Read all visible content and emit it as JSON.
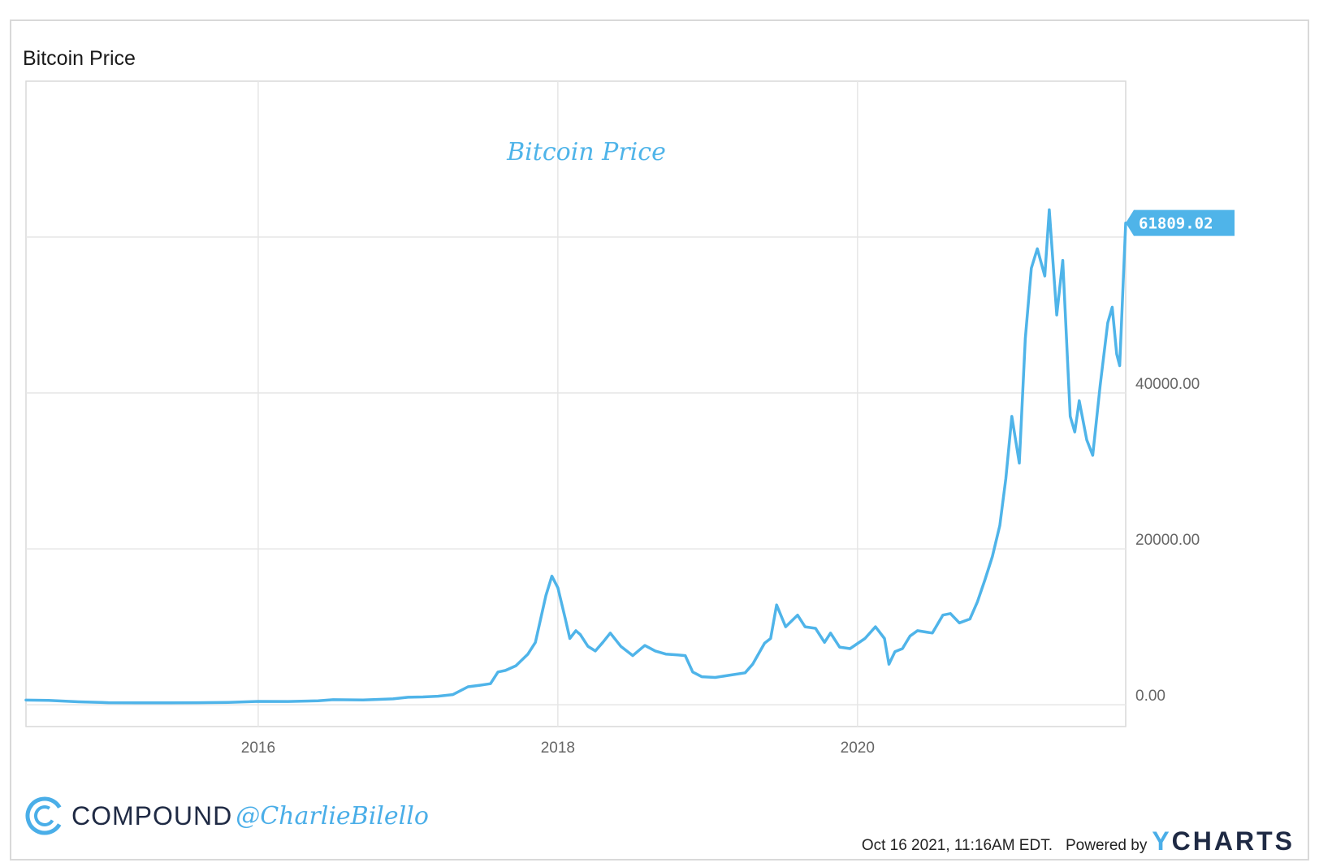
{
  "chart_title": "Bitcoin Price",
  "footer": {
    "brand_name": "COMPOUND",
    "brand_handle": "@CharlieBilello",
    "timestamp": "Oct 16 2021, 11:16AM EDT.",
    "powered_by": "Powered by",
    "ycharts_prefix": "Y",
    "ycharts_rest": "CHARTS"
  },
  "colors": {
    "line": "#4fb4e9",
    "grid": "#e6e6e6",
    "axis_text": "#666666",
    "brand_dark": "#1f2a44"
  },
  "chart_data": {
    "type": "line",
    "title": "Bitcoin Price",
    "watermark": "Bitcoin Price",
    "xlabel": "",
    "ylabel": "",
    "xlim": [
      2014.45,
      2021.79
    ],
    "ylim": [
      -2800,
      80000
    ],
    "x_ticks": [
      {
        "value": 2016,
        "label": "2016"
      },
      {
        "value": 2018,
        "label": "2018"
      },
      {
        "value": 2020,
        "label": "2020"
      }
    ],
    "y_ticks": [
      {
        "value": 0,
        "label": "0.00"
      },
      {
        "value": 20000,
        "label": "20000.00"
      },
      {
        "value": 40000,
        "label": "40000.00"
      },
      {
        "value": 60000,
        "label": ""
      }
    ],
    "last_value_label": "61809.02",
    "grid": true,
    "series": [
      {
        "values": [
          [
            2014.45,
            600
          ],
          [
            2014.6,
            550
          ],
          [
            2014.8,
            380
          ],
          [
            2015.0,
            260
          ],
          [
            2015.2,
            240
          ],
          [
            2015.4,
            240
          ],
          [
            2015.6,
            260
          ],
          [
            2015.8,
            300
          ],
          [
            2016.0,
            430
          ],
          [
            2016.2,
            420
          ],
          [
            2016.4,
            500
          ],
          [
            2016.5,
            650
          ],
          [
            2016.7,
            610
          ],
          [
            2016.9,
            750
          ],
          [
            2017.0,
            960
          ],
          [
            2017.1,
            1000
          ],
          [
            2017.2,
            1100
          ],
          [
            2017.3,
            1300
          ],
          [
            2017.4,
            2300
          ],
          [
            2017.48,
            2500
          ],
          [
            2017.55,
            2700
          ],
          [
            2017.6,
            4200
          ],
          [
            2017.65,
            4400
          ],
          [
            2017.72,
            5000
          ],
          [
            2017.8,
            6500
          ],
          [
            2017.85,
            8000
          ],
          [
            2017.92,
            14000
          ],
          [
            2017.96,
            16500
          ],
          [
            2018.0,
            15000
          ],
          [
            2018.05,
            11000
          ],
          [
            2018.08,
            8500
          ],
          [
            2018.12,
            9500
          ],
          [
            2018.15,
            9000
          ],
          [
            2018.2,
            7500
          ],
          [
            2018.25,
            6900
          ],
          [
            2018.3,
            8000
          ],
          [
            2018.35,
            9200
          ],
          [
            2018.42,
            7500
          ],
          [
            2018.5,
            6300
          ],
          [
            2018.58,
            7600
          ],
          [
            2018.65,
            6900
          ],
          [
            2018.72,
            6500
          ],
          [
            2018.8,
            6400
          ],
          [
            2018.85,
            6300
          ],
          [
            2018.9,
            4200
          ],
          [
            2018.96,
            3600
          ],
          [
            2019.05,
            3500
          ],
          [
            2019.15,
            3800
          ],
          [
            2019.25,
            4100
          ],
          [
            2019.3,
            5200
          ],
          [
            2019.38,
            7900
          ],
          [
            2019.42,
            8500
          ],
          [
            2019.46,
            12800
          ],
          [
            2019.52,
            10000
          ],
          [
            2019.6,
            11500
          ],
          [
            2019.65,
            10000
          ],
          [
            2019.72,
            9800
          ],
          [
            2019.78,
            8000
          ],
          [
            2019.82,
            9200
          ],
          [
            2019.88,
            7400
          ],
          [
            2019.95,
            7200
          ],
          [
            2020.05,
            8500
          ],
          [
            2020.12,
            10000
          ],
          [
            2020.18,
            8500
          ],
          [
            2020.21,
            5200
          ],
          [
            2020.25,
            6800
          ],
          [
            2020.3,
            7200
          ],
          [
            2020.35,
            8800
          ],
          [
            2020.4,
            9500
          ],
          [
            2020.5,
            9200
          ],
          [
            2020.57,
            11500
          ],
          [
            2020.62,
            11700
          ],
          [
            2020.68,
            10500
          ],
          [
            2020.75,
            11000
          ],
          [
            2020.8,
            13200
          ],
          [
            2020.85,
            16000
          ],
          [
            2020.9,
            19000
          ],
          [
            2020.95,
            23000
          ],
          [
            2020.99,
            29000
          ],
          [
            2021.03,
            37000
          ],
          [
            2021.08,
            31000
          ],
          [
            2021.12,
            47000
          ],
          [
            2021.16,
            56000
          ],
          [
            2021.2,
            58500
          ],
          [
            2021.25,
            55000
          ],
          [
            2021.28,
            63500
          ],
          [
            2021.33,
            50000
          ],
          [
            2021.37,
            57000
          ],
          [
            2021.42,
            37000
          ],
          [
            2021.45,
            35000
          ],
          [
            2021.48,
            39000
          ],
          [
            2021.53,
            34000
          ],
          [
            2021.57,
            32000
          ],
          [
            2021.62,
            41000
          ],
          [
            2021.67,
            49000
          ],
          [
            2021.7,
            51000
          ],
          [
            2021.73,
            45000
          ],
          [
            2021.75,
            43500
          ],
          [
            2021.79,
            61809
          ]
        ]
      }
    ]
  }
}
